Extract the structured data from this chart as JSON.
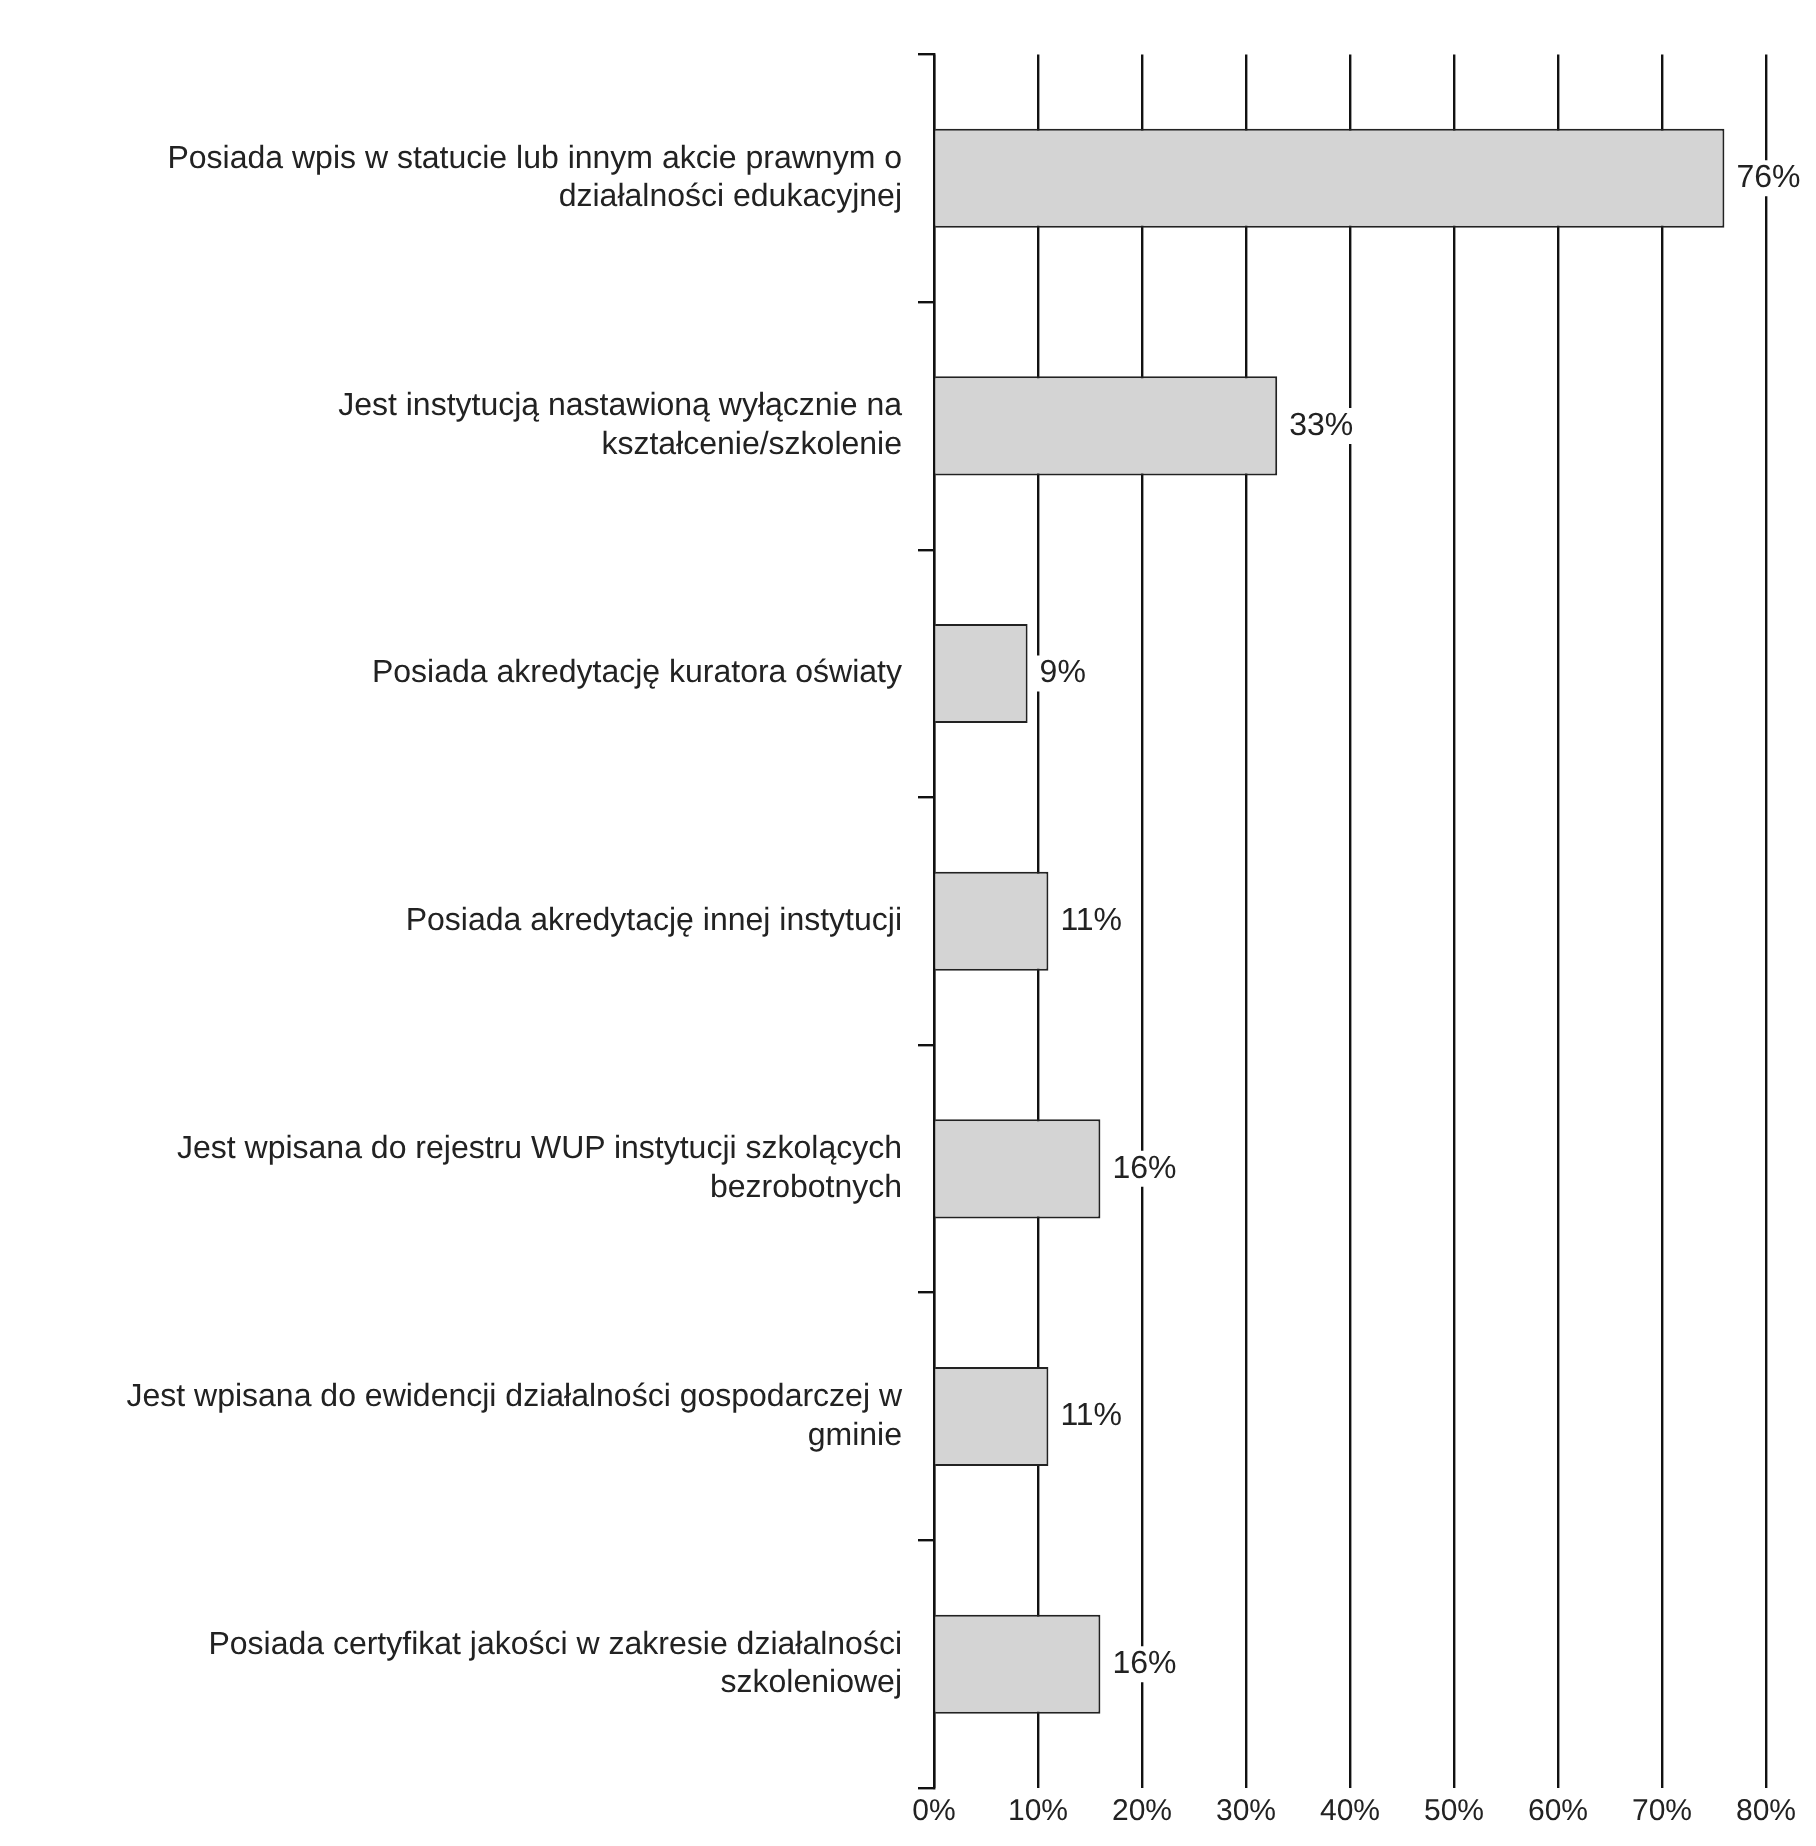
{
  "chart_data": {
    "type": "bar",
    "orientation": "horizontal",
    "categories": [
      "Posiada wpis w statucie lub innym akcie prawnym o działalności edukacyjnej",
      "Jest instytucją nastawioną wyłącznie na kształcenie/szkolenie",
      "Posiada akredytację kuratora oświaty",
      "Posiada akredytację innej instytucji",
      "Jest wpisana do rejestru WUP instytucji szkolących bezrobotnych",
      "Jest wpisana do ewidencji działalności gospodarczej w gminie",
      "Posiada certyfikat jakości w zakresie działalności szkoleniowej"
    ],
    "values": [
      76,
      33,
      9,
      11,
      16,
      11,
      16
    ],
    "color": "#d4d4d4",
    "value_labels": [
      "76%",
      "33%",
      "9%",
      "11%",
      "16%",
      "11%",
      "16%"
    ],
    "xlim": [
      0,
      80
    ],
    "xticks": [
      {
        "value": 0,
        "label": "0%"
      },
      {
        "value": 10,
        "label": "10%"
      },
      {
        "value": 20,
        "label": "20%"
      },
      {
        "value": 30,
        "label": "30%"
      },
      {
        "value": 40,
        "label": "40%"
      },
      {
        "value": 50,
        "label": "50%"
      },
      {
        "value": 60,
        "label": "60%"
      },
      {
        "value": 70,
        "label": "70%"
      },
      {
        "value": 80,
        "label": "80%"
      }
    ],
    "grid": "x"
  }
}
